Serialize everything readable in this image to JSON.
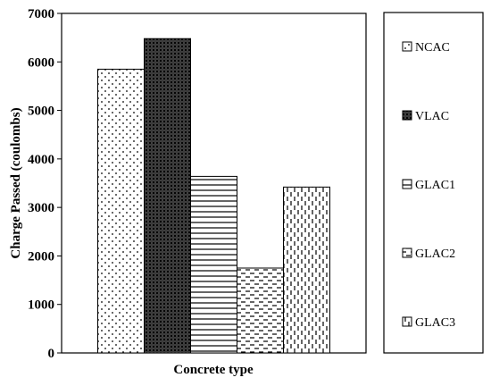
{
  "chart_data": {
    "type": "bar",
    "categories": [
      "NCAC",
      "VLAC",
      "GLAC1",
      "GLAC2",
      "GLAC3"
    ],
    "values": [
      5850,
      6480,
      3640,
      1750,
      3420
    ],
    "xlabel": "Concrete type",
    "ylabel": "Charge Passed (coulombs)",
    "ylim": [
      0,
      7000
    ],
    "yticks": [
      0,
      1000,
      2000,
      3000,
      4000,
      5000,
      6000,
      7000
    ],
    "grid": false,
    "legend_position": "right",
    "patterns": [
      "dots",
      "crosshatch",
      "horizontal-lines",
      "horizontal-dashes",
      "vertical-dashes"
    ]
  }
}
